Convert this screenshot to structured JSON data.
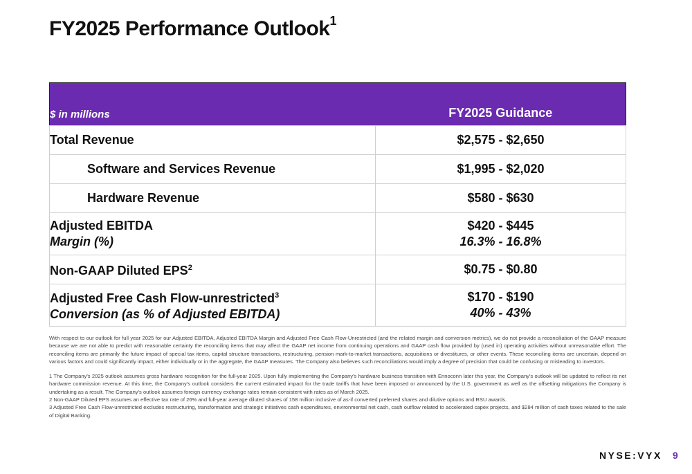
{
  "title": {
    "text": "FY2025 Performance Outlook",
    "footnote": "1"
  },
  "table": {
    "units_label": "$ in millions",
    "guidance_header": "FY2025 Guidance",
    "rows": {
      "total_revenue": {
        "label": "Total Revenue",
        "value": "$2,575 - $2,650"
      },
      "software_revenue": {
        "label": "Software and Services Revenue",
        "value": "$1,995 - $2,020"
      },
      "hardware_revenue": {
        "label": "Hardware Revenue",
        "value": "$580 - $630"
      },
      "adj_ebitda": {
        "label": "Adjusted EBITDA",
        "sublabel": "Margin (%)",
        "value": "$420 - $445",
        "subvalue": "16.3% - 16.8%"
      },
      "eps": {
        "label": "Non-GAAP Diluted EPS",
        "footnote": "2",
        "value": "$0.75 - $0.80"
      },
      "fcf": {
        "label": "Adjusted Free Cash Flow-unrestricted",
        "footnote": "3",
        "sublabel": "Conversion (as % of Adjusted EBITDA)",
        "value": "$170 - $190",
        "subvalue": "40% - 43%"
      }
    }
  },
  "notes": {
    "main": "With respect to our outlook for full year 2025 for our Adjusted EBITDA, Adjusted EBITDA Margin and Adjusted Free Cash Flow-Unrestricted (and the related margin and conversion metrics), we do not provide a reconciliation of the GAAP measure because we are not able to predict with reasonable certainty the reconciling items that may affect the GAAP net income from continuing operations and GAAP cash flow provided by (used in) operating activities without unreasonable effort. The reconciling items are primarily the future impact of special tax items, capital structure transactions, restructuring, pension mark-to-market transactions, acquisitions or divestitures, or other events. These reconciling items are uncertain, depend on various factors and could significantly impact, either individually or in the aggregate, the GAAP measures. The Company also believes such reconciliations would imply a degree of precision that could be confusing or misleading to investors.",
    "fn1": "1 The Company's 2025 outlook assumes gross hardware recognition for the full-year 2025. Upon fully implementing the Company's hardware business transition with Ennoconn later this year, the Company's outlook will be updated to reflect its net hardware commission revenue. At this time, the Company's outlook considers the current estimated impact for the trade tariffs that have been imposed or announced by the U.S. government as well as the offsetting mitigations the Company is undertaking as a result. The Company's outlook assumes foreign currency exchange rates remain consistent with rates as of March 2025.",
    "fn2": "2 Non-GAAP Diluted EPS assumes an effective tax rate of 26% and full-year average diluted shares of 158 million inclusive of as-if converted preferred shares and dilutive options and RSU awards.",
    "fn3": "3 Adjusted Free Cash Flow-unrestricted excludes restructuring, transformation and strategic initiatives cash expenditures, environmental net cash, cash outflow related to accelerated capex projects, and $284 million of cash taxes related to the sale of Digital Banking."
  },
  "footer": {
    "ticker": "NYSE:VYX",
    "page": "9"
  },
  "colors": {
    "accent": "#6a2bb1"
  }
}
